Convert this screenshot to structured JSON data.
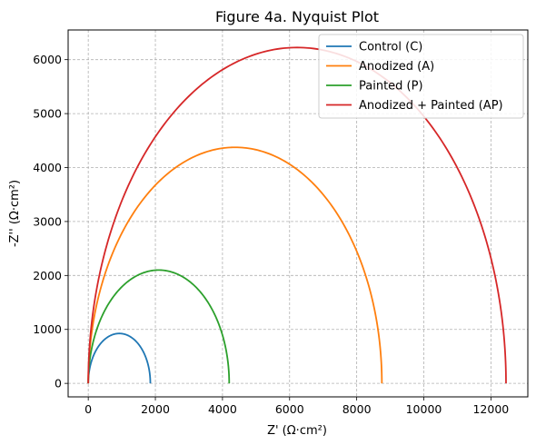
{
  "chart_data": {
    "type": "line",
    "title": "Figure 4a. Nyquist Plot",
    "xlabel": "Z' (Ω·cm²)",
    "ylabel": "-Z'' (Ω·cm²)",
    "xlim": [
      -600,
      13100
    ],
    "ylim": [
      -250,
      6550
    ],
    "xticks": [
      0,
      2000,
      4000,
      6000,
      8000,
      10000,
      12000
    ],
    "yticks": [
      0,
      1000,
      2000,
      3000,
      4000,
      5000,
      6000
    ],
    "grid": true,
    "legend_position": "top-right",
    "series": [
      {
        "name": "Control (C)",
        "color": "#1f77b4",
        "shape": "semicircle",
        "x_start": 0,
        "x_end": 1850,
        "peak": 925
      },
      {
        "name": "Anodized (A)",
        "color": "#ff7f0e",
        "shape": "semicircle",
        "x_start": 0,
        "x_end": 8750,
        "peak": 4375
      },
      {
        "name": "Painted (P)",
        "color": "#2ca02c",
        "shape": "semicircle",
        "x_start": 0,
        "x_end": 4200,
        "peak": 2100
      },
      {
        "name": "Anodized + Painted (AP)",
        "color": "#d62728",
        "shape": "semicircle",
        "x_start": 0,
        "x_end": 12450,
        "peak": 6225
      }
    ]
  }
}
